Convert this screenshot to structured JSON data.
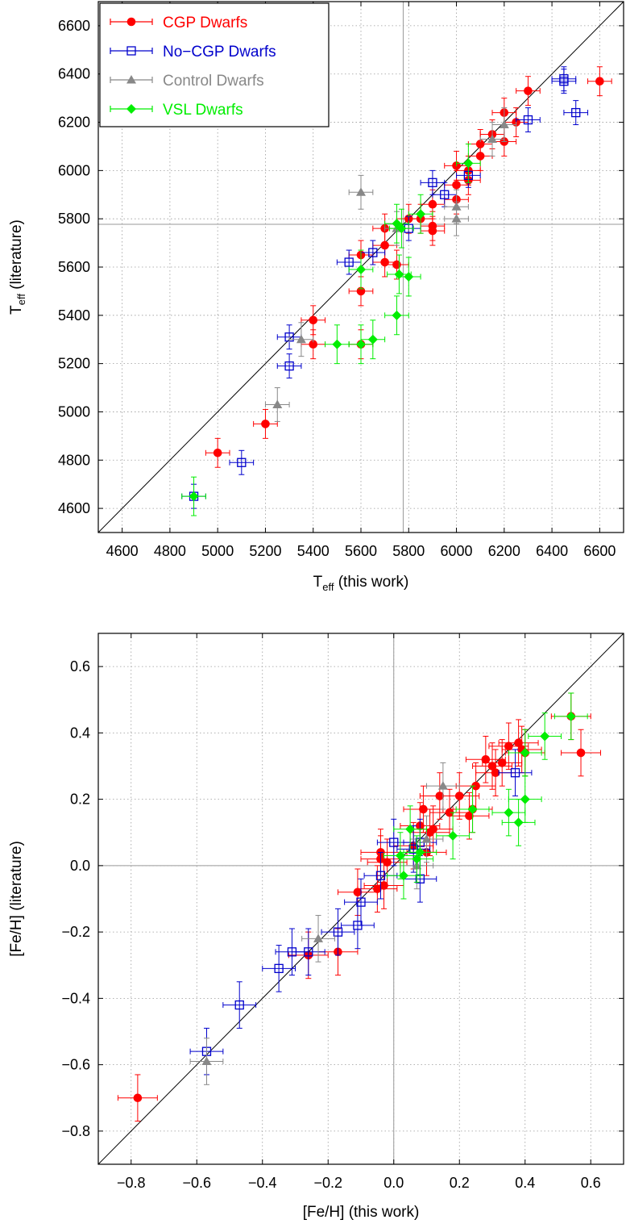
{
  "legend": [
    {
      "label": "CGP Dwarfs",
      "color": "#ff0000",
      "marker": "circle"
    },
    {
      "label": "No−CGP Dwarfs",
      "color": "#0000cc",
      "marker": "square-open"
    },
    {
      "label": "Control Dwarfs",
      "color": "#888888",
      "marker": "triangle"
    },
    {
      "label": "VSL Dwarfs",
      "color": "#00ee00",
      "marker": "diamond"
    }
  ],
  "chart_data": [
    {
      "type": "scatter",
      "xlabel_main": "T",
      "xlabel_sub": "eff",
      "xlabel_rest": " (this work)",
      "ylabel_main": "T",
      "ylabel_sub": "eff",
      "ylabel_rest": " (literature)",
      "xlim": [
        4500,
        6700
      ],
      "ylim": [
        4500,
        6700
      ],
      "xticks": [
        4600,
        4800,
        5000,
        5200,
        5400,
        5600,
        5800,
        6000,
        6200,
        6400,
        6600
      ],
      "yticks": [
        4600,
        4800,
        5000,
        5200,
        5400,
        5600,
        5800,
        6000,
        6200,
        6400,
        6600
      ],
      "tick_labels": [
        "4600",
        "4800",
        "5000",
        "5200",
        "5400",
        "5600",
        "5800",
        "6000",
        "6200",
        "6400",
        "6600"
      ],
      "grid": true,
      "reference_lines": {
        "x": 5777,
        "y": 5777,
        "diagonal": true
      },
      "legend_position": "top-left",
      "series": [
        {
          "legend_index": 0,
          "xerr": 50,
          "yerr": 60,
          "points": [
            [
              5000,
              4830
            ],
            [
              5200,
              4950
            ],
            [
              5400,
              5380
            ],
            [
              5400,
              5280
            ],
            [
              5600,
              5650
            ],
            [
              5600,
              5500
            ],
            [
              5600,
              5280
            ],
            [
              5700,
              5760
            ],
            [
              5700,
              5690
            ],
            [
              5700,
              5620
            ],
            [
              5750,
              5610
            ],
            [
              5800,
              5800
            ],
            [
              5850,
              5800
            ],
            [
              5900,
              5860
            ],
            [
              5900,
              5770
            ],
            [
              5900,
              5750
            ],
            [
              6000,
              5940
            ],
            [
              6000,
              5880
            ],
            [
              6050,
              5960
            ],
            [
              6050,
              6000
            ],
            [
              6100,
              6110
            ],
            [
              6100,
              6060
            ],
            [
              6150,
              6150
            ],
            [
              6200,
              6240
            ],
            [
              6200,
              6120
            ],
            [
              6250,
              6200
            ],
            [
              6300,
              6330
            ],
            [
              6600,
              6370
            ],
            [
              6000,
              6020
            ]
          ]
        },
        {
          "legend_index": 1,
          "xerr": 50,
          "yerr": 50,
          "points": [
            [
              4900,
              4650
            ],
            [
              5100,
              4790
            ],
            [
              5300,
              5310
            ],
            [
              5300,
              5190
            ],
            [
              5550,
              5620
            ],
            [
              5650,
              5660
            ],
            [
              5800,
              5760
            ],
            [
              5900,
              5950
            ],
            [
              5950,
              5900
            ],
            [
              6050,
              5980
            ],
            [
              6300,
              6210
            ],
            [
              6450,
              6380
            ],
            [
              6450,
              6370
            ],
            [
              6500,
              6240
            ]
          ]
        },
        {
          "legend_index": 2,
          "xerr": 50,
          "yerr": 70,
          "points": [
            [
              5250,
              5030
            ],
            [
              5350,
              5300
            ],
            [
              5600,
              5910
            ],
            [
              5750,
              5760
            ],
            [
              6000,
              5850
            ],
            [
              6000,
              5800
            ],
            [
              6150,
              6130
            ],
            [
              6200,
              6190
            ]
          ]
        },
        {
          "legend_index": 3,
          "xerr": 50,
          "yerr": 80,
          "points": [
            [
              4900,
              4650
            ],
            [
              5500,
              5280
            ],
            [
              5600,
              5280
            ],
            [
              5600,
              5590
            ],
            [
              5650,
              5300
            ],
            [
              5750,
              5780
            ],
            [
              5750,
              5400
            ],
            [
              5760,
              5570
            ],
            [
              5800,
              5560
            ],
            [
              5850,
              5820
            ],
            [
              6050,
              6030
            ],
            [
              5770,
              5760
            ]
          ]
        }
      ]
    },
    {
      "type": "scatter",
      "xlabel": "[Fe/H] (this work)",
      "ylabel": "[Fe/H] (literature)",
      "xlim": [
        -0.9,
        0.7
      ],
      "ylim": [
        -0.9,
        0.7
      ],
      "xticks": [
        -0.8,
        -0.6,
        -0.4,
        -0.2,
        0.0,
        0.2,
        0.4,
        0.6
      ],
      "yticks": [
        -0.8,
        -0.6,
        -0.4,
        -0.2,
        0.0,
        0.2,
        0.4,
        0.6
      ],
      "tick_labels": [
        "−0.8",
        "−0.6",
        "−0.4",
        "−0.2",
        "0.0",
        "0.2",
        "0.4",
        "0.6"
      ],
      "grid": true,
      "reference_lines": {
        "x": 0.0,
        "y": 0.0,
        "diagonal": true
      },
      "series": [
        {
          "legend_index": 0,
          "xerr": 0.06,
          "yerr": 0.07,
          "points": [
            [
              -0.78,
              -0.7
            ],
            [
              -0.26,
              -0.27
            ],
            [
              -0.17,
              -0.26
            ],
            [
              -0.11,
              -0.08
            ],
            [
              -0.05,
              -0.07
            ],
            [
              -0.04,
              0.04
            ],
            [
              -0.04,
              0.02
            ],
            [
              -0.03,
              -0.06
            ],
            [
              -0.02,
              0.01
            ],
            [
              0.06,
              0.06
            ],
            [
              0.08,
              0.12
            ],
            [
              0.09,
              0.17
            ],
            [
              0.1,
              0.04
            ],
            [
              0.11,
              0.1
            ],
            [
              0.12,
              0.11
            ],
            [
              0.14,
              0.21
            ],
            [
              0.17,
              0.16
            ],
            [
              0.2,
              0.21
            ],
            [
              0.23,
              0.15
            ],
            [
              0.24,
              0.17
            ],
            [
              0.25,
              0.24
            ],
            [
              0.28,
              0.32
            ],
            [
              0.3,
              0.3
            ],
            [
              0.31,
              0.28
            ],
            [
              0.33,
              0.31
            ],
            [
              0.35,
              0.36
            ],
            [
              0.38,
              0.37
            ],
            [
              0.39,
              0.35
            ],
            [
              0.4,
              0.34
            ],
            [
              0.54,
              0.45
            ],
            [
              0.57,
              0.34
            ]
          ]
        },
        {
          "legend_index": 1,
          "xerr": 0.05,
          "yerr": 0.07,
          "points": [
            [
              -0.57,
              -0.56
            ],
            [
              -0.47,
              -0.42
            ],
            [
              -0.35,
              -0.31
            ],
            [
              -0.31,
              -0.26
            ],
            [
              -0.26,
              -0.26
            ],
            [
              -0.17,
              -0.2
            ],
            [
              -0.11,
              -0.18
            ],
            [
              -0.1,
              -0.11
            ],
            [
              -0.04,
              -0.03
            ],
            [
              0.0,
              0.07
            ],
            [
              0.06,
              0.05
            ],
            [
              0.08,
              0.07
            ],
            [
              0.08,
              -0.04
            ],
            [
              0.37,
              0.28
            ]
          ]
        },
        {
          "legend_index": 2,
          "xerr": 0.05,
          "yerr": 0.07,
          "points": [
            [
              -0.57,
              -0.59
            ],
            [
              -0.23,
              -0.22
            ],
            [
              0.07,
              0.0
            ],
            [
              0.1,
              0.08
            ],
            [
              0.15,
              0.24
            ]
          ]
        },
        {
          "legend_index": 3,
          "xerr": 0.05,
          "yerr": 0.07,
          "points": [
            [
              0.02,
              0.03
            ],
            [
              0.03,
              -0.03
            ],
            [
              0.05,
              0.11
            ],
            [
              0.07,
              0.02
            ],
            [
              0.08,
              0.04
            ],
            [
              0.18,
              0.09
            ],
            [
              0.24,
              0.17
            ],
            [
              0.35,
              0.16
            ],
            [
              0.38,
              0.13
            ],
            [
              0.4,
              0.2
            ],
            [
              0.4,
              0.34
            ],
            [
              0.46,
              0.39
            ],
            [
              0.54,
              0.45
            ]
          ]
        }
      ]
    }
  ]
}
